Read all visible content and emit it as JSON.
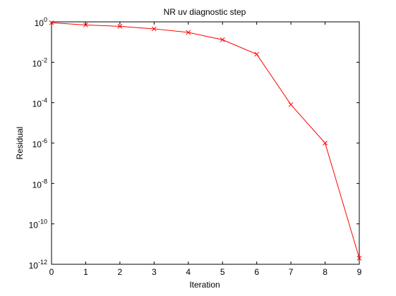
{
  "chart_data": {
    "type": "line",
    "title": "NR uv diagnostic step",
    "xlabel": "Iteration",
    "ylabel": "Residual",
    "xlim": [
      0,
      9
    ],
    "ylim": [
      1e-12,
      1
    ],
    "yscale": "log",
    "grid": false,
    "x_ticks": [
      "0",
      "1",
      "2",
      "3",
      "4",
      "5",
      "6",
      "7",
      "8",
      "9"
    ],
    "y_ticks": [
      {
        "base": "10",
        "exp": "0"
      },
      {
        "base": "10",
        "exp": "-2"
      },
      {
        "base": "10",
        "exp": "-4"
      },
      {
        "base": "10",
        "exp": "-6"
      },
      {
        "base": "10",
        "exp": "-8"
      },
      {
        "base": "10",
        "exp": "-10"
      },
      {
        "base": "10",
        "exp": "-12"
      }
    ],
    "series": [
      {
        "color": "#ff0000",
        "marker": "x",
        "x": [
          0,
          1,
          2,
          3,
          4,
          5,
          6,
          7,
          8,
          9
        ],
        "y": [
          0.9,
          0.7,
          0.6,
          0.45,
          0.3,
          0.13,
          0.025,
          8e-05,
          1e-06,
          2e-12
        ]
      }
    ]
  }
}
